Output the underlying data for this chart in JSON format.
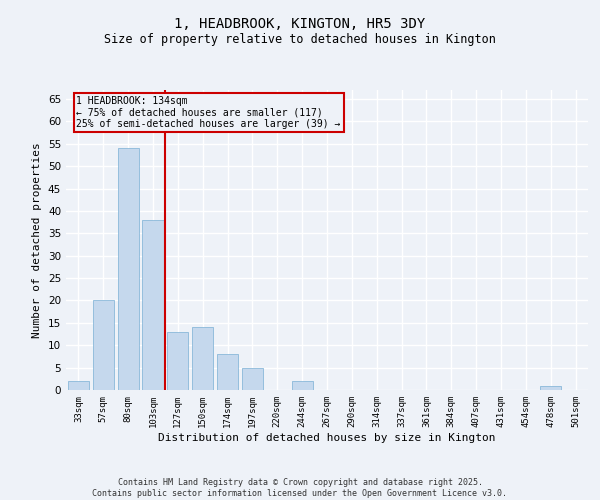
{
  "title1": "1, HEADBROOK, KINGTON, HR5 3DY",
  "title2": "Size of property relative to detached houses in Kington",
  "xlabel": "Distribution of detached houses by size in Kington",
  "ylabel": "Number of detached properties",
  "categories": [
    "33sqm",
    "57sqm",
    "80sqm",
    "103sqm",
    "127sqm",
    "150sqm",
    "174sqm",
    "197sqm",
    "220sqm",
    "244sqm",
    "267sqm",
    "290sqm",
    "314sqm",
    "337sqm",
    "361sqm",
    "384sqm",
    "407sqm",
    "431sqm",
    "454sqm",
    "478sqm",
    "501sqm"
  ],
  "values": [
    2,
    20,
    54,
    38,
    13,
    14,
    8,
    5,
    0,
    2,
    0,
    0,
    0,
    0,
    0,
    0,
    0,
    0,
    0,
    1,
    0
  ],
  "bar_color": "#c5d8ed",
  "bar_edgecolor": "#7aafd4",
  "vline_x": 3.5,
  "vline_color": "#cc0000",
  "annotation_text": "1 HEADBROOK: 134sqm\n← 75% of detached houses are smaller (117)\n25% of semi-detached houses are larger (39) →",
  "annotation_box_edgecolor": "#cc0000",
  "ylim": [
    0,
    67
  ],
  "yticks": [
    0,
    5,
    10,
    15,
    20,
    25,
    30,
    35,
    40,
    45,
    50,
    55,
    60,
    65
  ],
  "background_color": "#eef2f8",
  "grid_color": "#ffffff",
  "footer": "Contains HM Land Registry data © Crown copyright and database right 2025.\nContains public sector information licensed under the Open Government Licence v3.0."
}
